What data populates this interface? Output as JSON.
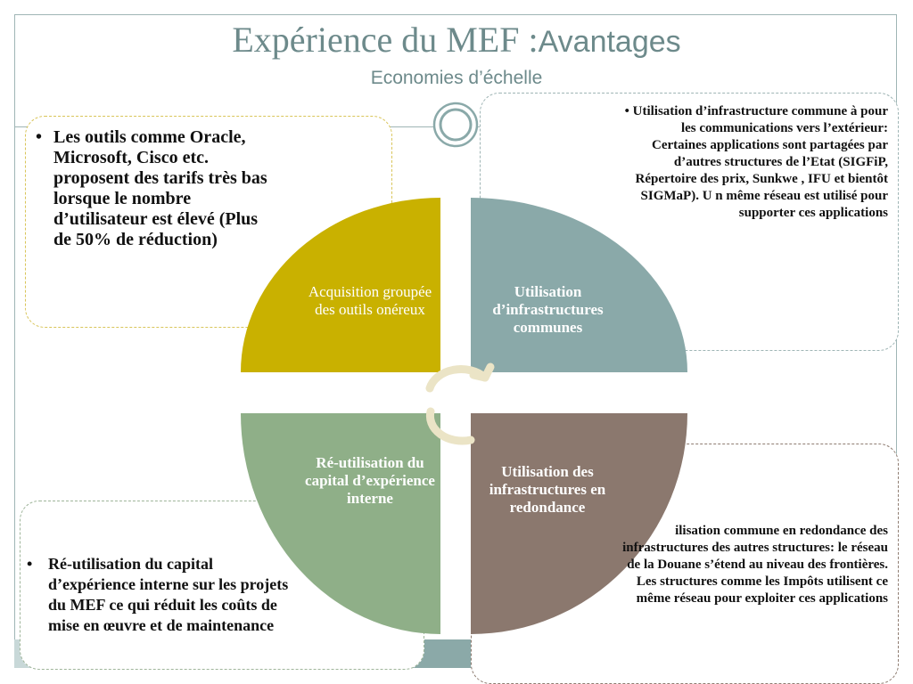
{
  "title": {
    "main": "Expérience du MEF :",
    "tail": "Avantages"
  },
  "subtitle": "Economies d’échelle",
  "colors": {
    "accent": "#6d8a8b",
    "quadrant_acquisition": "#c9b100",
    "quadrant_infrastructures": "#8aa9a9",
    "quadrant_reutilisation": "#8faf88",
    "quadrant_redondance": "#8b786e",
    "cycle_arrows": "#ebe4c6"
  },
  "quadrants": {
    "acquisition": "Acquisition groupée des outils onéreux",
    "infrastructures": "Utilisation d’infrastructures communes",
    "reutilisation": "Ré-utilisation du capital d’expérience interne",
    "redondance": "Utilisation des infrastructures en redondance"
  },
  "callouts": {
    "top_left": {
      "bullet": "•",
      "text": "Les outils comme Oracle, Microsoft, Cisco etc. proposent des tarifs très bas lorsque le nombre d’utilisateur est élevé (Plus de 50% de réduction)"
    },
    "top_right": {
      "text": "• Utilisation d’infrastructure commune à pour les communications vers l’extérieur: Certaines applications sont partagées par d’autres structures de l’Etat (SIGFiP, Répertoire des prix, Sunkwe , IFU et bientôt SIGMaP). U n même réseau est utilisé pour supporter ces applications"
    },
    "bottom_right": {
      "text": "ilisation commune en redondance des infrastructures des autres structures: le réseau de la Douane s’étend au niveau des frontières. Les structures comme les Impôts utilisent ce même réseau pour exploiter ces applications"
    },
    "bottom_left": {
      "bullet": "•",
      "text": "Ré-utilisation du capital d’expérience interne sur les projets du MEF ce qui réduit les coûts de mise en œuvre et de maintenance"
    }
  }
}
